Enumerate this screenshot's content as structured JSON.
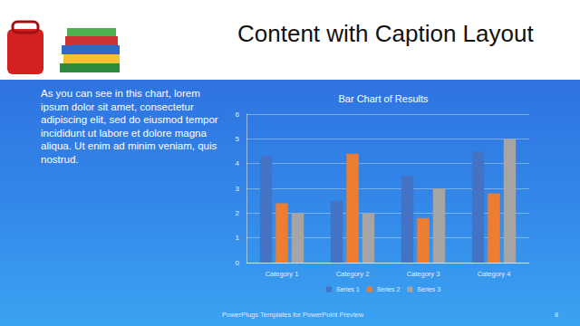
{
  "title": "Content with Caption Layout",
  "caption": "As you can see in this chart, lorem ipsum dolor sit amet, consectetur adipiscing elit, sed do eiusmod tempor incididunt ut labore et dolore magna aliqua. Ut enim ad minim veniam, quis nostrud.",
  "footer": "PowerPlugs Templates for PowerPoint Preview",
  "page": 8,
  "chart_data": {
    "type": "bar",
    "title": "Bar Chart of Results",
    "categories": [
      "Category 1",
      "Category 2",
      "Category 3",
      "Category 4"
    ],
    "series": [
      {
        "name": "Series 1",
        "color": "#4472c4",
        "values": [
          4.3,
          2.5,
          3.5,
          4.5
        ]
      },
      {
        "name": "Series 2",
        "color": "#ed7d31",
        "values": [
          2.4,
          4.4,
          1.8,
          2.8
        ]
      },
      {
        "name": "Series 3",
        "color": "#a5a5a5",
        "values": [
          2,
          2,
          3,
          5
        ]
      }
    ],
    "ylim": [
      0,
      6
    ],
    "yticks": [
      0,
      1,
      2,
      3,
      4,
      5,
      6
    ],
    "grid": true,
    "legend": "bottom"
  }
}
